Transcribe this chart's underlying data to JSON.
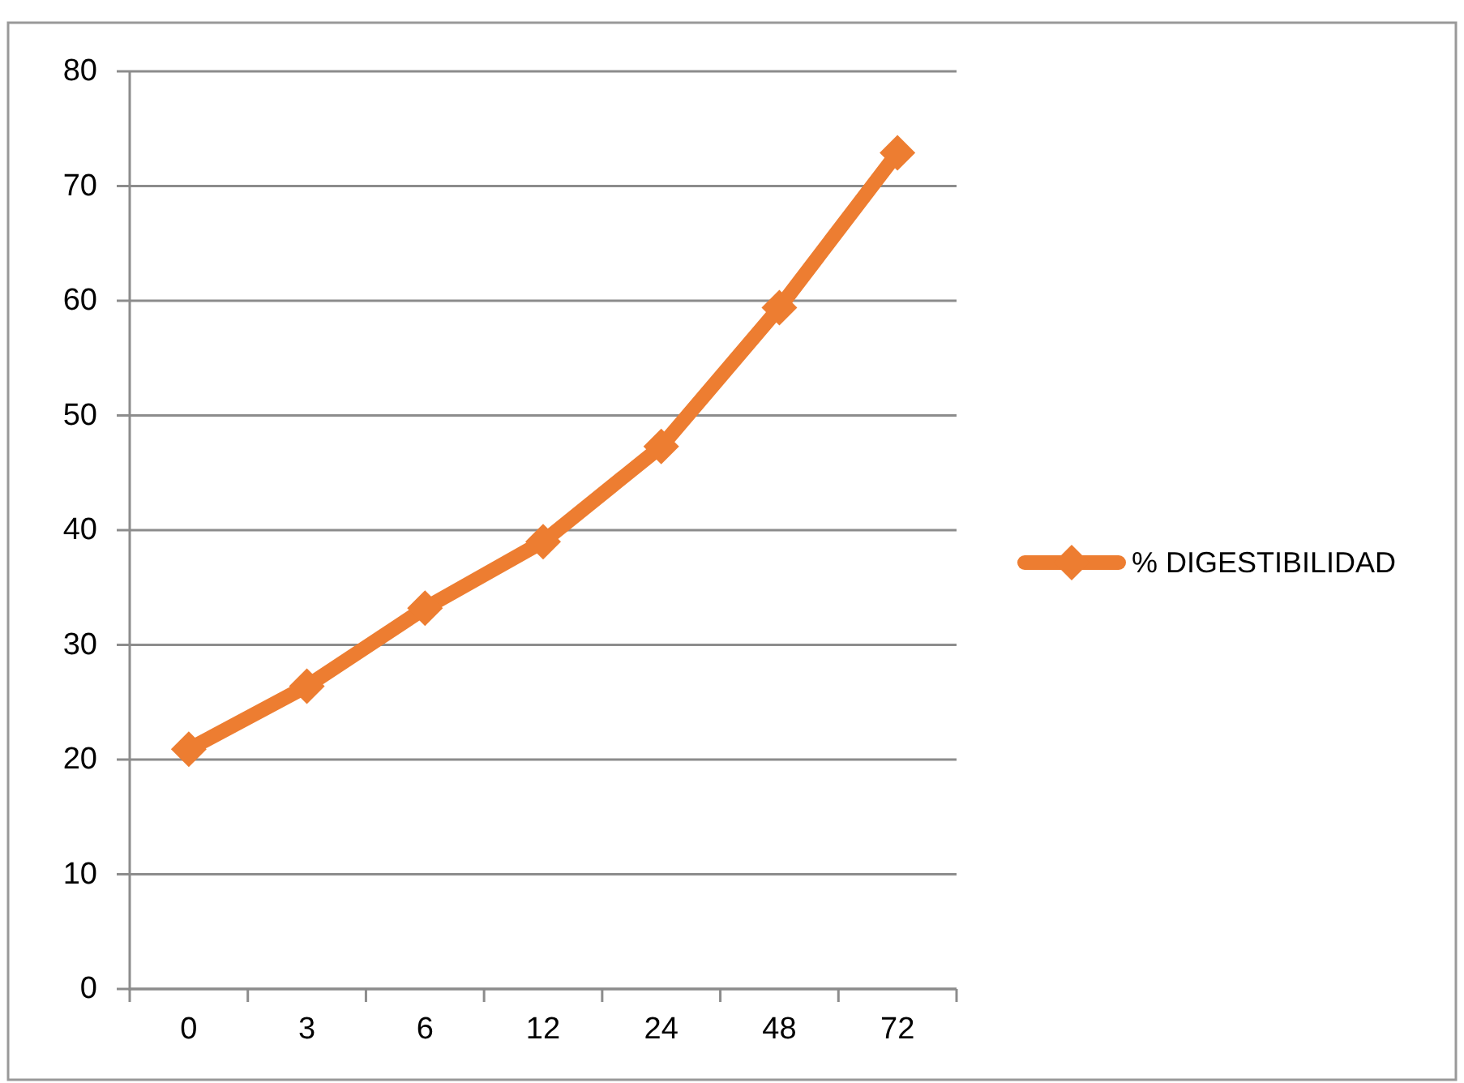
{
  "chart_data": {
    "type": "line",
    "categories": [
      "0",
      "3",
      "6",
      "12",
      "24",
      "48",
      "72"
    ],
    "series": [
      {
        "name": "% DIGESTIBILIDAD",
        "color": "#ed7d31",
        "values": [
          20.9,
          26.4,
          33.2,
          39.0,
          47.3,
          59.4,
          72.9
        ]
      }
    ],
    "ylim": [
      0,
      80
    ],
    "yticks": [
      0,
      10,
      20,
      30,
      40,
      50,
      60,
      70,
      80
    ],
    "grid": "y",
    "legend": "right",
    "marker": "diamond",
    "line_style": "solid"
  }
}
